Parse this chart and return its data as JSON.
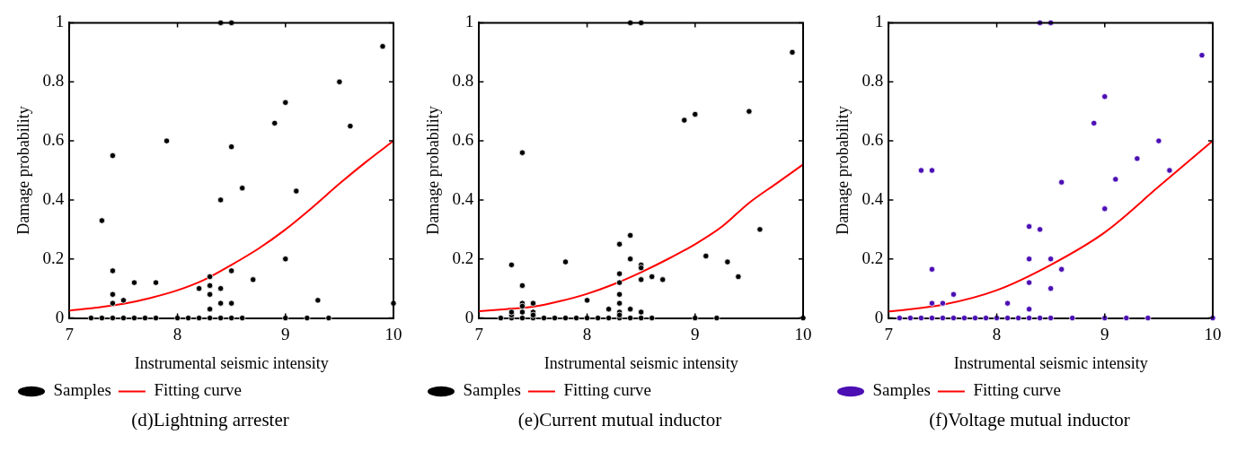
{
  "chart_data": [
    {
      "type": "scatter",
      "title": "(d)Lightning arrester",
      "xlabel": "Instrumental seismic intensity",
      "ylabel": "Damage probability",
      "xlim": [
        7,
        10
      ],
      "xticks": [
        7,
        8,
        9,
        10
      ],
      "ylim": [
        0,
        1
      ],
      "yticks": [
        0,
        0.2,
        0.4,
        0.6,
        0.8,
        1
      ],
      "grid": false,
      "legend": "bottom left",
      "series": [
        {
          "name": "Samples",
          "type": "scatter",
          "marker": "circle",
          "color": "#000000",
          "x": [
            7.2,
            7.3,
            7.4,
            7.5,
            7.6,
            7.7,
            7.8,
            8.0,
            8.1,
            8.2,
            8.3,
            8.4,
            8.5,
            8.6,
            9.0,
            9.2,
            9.4,
            7.3,
            7.4,
            7.4,
            7.4,
            7.4,
            7.5,
            7.6,
            7.8,
            7.9,
            8.2,
            8.3,
            8.3,
            8.3,
            8.3,
            8.4,
            8.4,
            8.4,
            8.4,
            8.5,
            8.5,
            8.5,
            8.5,
            8.6,
            8.7,
            8.9,
            9.0,
            9.0,
            9.1,
            9.3,
            9.5,
            9.6,
            9.9,
            10.0
          ],
          "values": [
            0,
            0,
            0,
            0,
            0,
            0,
            0,
            0,
            0,
            0,
            0,
            0,
            0,
            0,
            0,
            0,
            0,
            0.33,
            0.55,
            0.16,
            0.08,
            0.05,
            0.06,
            0.12,
            0.12,
            0.6,
            0.1,
            0.14,
            0.11,
            0.08,
            0.03,
            1.0,
            0.4,
            0.1,
            0.05,
            1.0,
            0.58,
            0.16,
            0.05,
            0.44,
            0.13,
            0.66,
            0.73,
            0.2,
            0.43,
            0.06,
            0.8,
            0.65,
            0.92,
            0.05
          ]
        },
        {
          "name": "Fitting curve",
          "type": "line",
          "color": "#ff0000",
          "line_style": "solid",
          "x": [
            7,
            7.25,
            7.5,
            7.75,
            8,
            8.25,
            8.5,
            8.75,
            9,
            9.25,
            9.5,
            9.75,
            10
          ],
          "values": [
            0.025,
            0.035,
            0.048,
            0.068,
            0.094,
            0.13,
            0.18,
            0.235,
            0.3,
            0.375,
            0.455,
            0.53,
            0.6
          ]
        }
      ]
    },
    {
      "type": "scatter",
      "title": "(e)Current mutual inductor",
      "xlabel": "Instrumental seismic intensity",
      "ylabel": "Damage probability",
      "xlim": [
        7,
        10
      ],
      "xticks": [
        7,
        8,
        9,
        10
      ],
      "ylim": [
        0,
        1
      ],
      "yticks": [
        0,
        0.2,
        0.4,
        0.6,
        0.8,
        1
      ],
      "grid": false,
      "legend": "bottom left",
      "series": [
        {
          "name": "Samples",
          "type": "scatter",
          "marker": "circle",
          "color": "#000000",
          "x": [
            7.2,
            7.3,
            7.4,
            7.5,
            7.6,
            7.7,
            7.8,
            7.9,
            8.0,
            8.1,
            8.2,
            8.3,
            8.4,
            8.5,
            8.6,
            9.0,
            9.2,
            10.0,
            7.3,
            7.3,
            7.3,
            7.4,
            7.4,
            7.4,
            7.4,
            7.4,
            7.5,
            7.5,
            7.5,
            7.8,
            8.0,
            8.2,
            8.3,
            8.3,
            8.3,
            8.3,
            8.3,
            8.3,
            8.3,
            8.4,
            8.4,
            8.4,
            8.4,
            8.5,
            8.5,
            8.5,
            8.5,
            8.5,
            8.6,
            8.7,
            8.9,
            9.0,
            9.1,
            9.3,
            9.4,
            9.5,
            9.6,
            9.9
          ],
          "values": [
            0,
            0,
            0,
            0,
            0,
            0,
            0,
            0,
            0,
            0,
            0,
            0,
            0,
            0,
            0,
            0,
            0,
            0,
            0.01,
            0.02,
            0.18,
            0.56,
            0.11,
            0.05,
            0.04,
            0.02,
            0.05,
            0.02,
            0.01,
            0.19,
            0.06,
            0.03,
            0.25,
            0.15,
            0.12,
            0.08,
            0.05,
            0.02,
            0.01,
            1.0,
            0.28,
            0.2,
            0.03,
            1.0,
            0.18,
            0.17,
            0.13,
            0.02,
            0.14,
            0.13,
            0.67,
            0.69,
            0.21,
            0.19,
            0.14,
            0.7,
            0.3,
            0.9
          ]
        },
        {
          "name": "Fitting curve",
          "type": "line",
          "color": "#ff0000",
          "line_style": "solid",
          "x": [
            7,
            7.25,
            7.5,
            7.75,
            8,
            8.25,
            8.5,
            8.75,
            9,
            9.25,
            9.5,
            9.75,
            10
          ],
          "values": [
            0.023,
            0.03,
            0.038,
            0.057,
            0.082,
            0.115,
            0.155,
            0.2,
            0.25,
            0.31,
            0.39,
            0.455,
            0.52
          ]
        }
      ]
    },
    {
      "type": "scatter",
      "title": "(f)Voltage mutual inductor",
      "xlabel": "Instrumental seismic intensity",
      "ylabel": "Damage probability",
      "xlim": [
        7,
        10
      ],
      "xticks": [
        7,
        8,
        9,
        10
      ],
      "ylim": [
        0,
        1
      ],
      "yticks": [
        0,
        0.2,
        0.4,
        0.6,
        0.8,
        1
      ],
      "grid": false,
      "legend": "bottom left",
      "series": [
        {
          "name": "Samples",
          "type": "scatter",
          "marker": "circle",
          "color": "#4b0fb4",
          "x": [
            7.1,
            7.2,
            7.3,
            7.4,
            7.5,
            7.6,
            7.7,
            7.8,
            7.9,
            8.0,
            8.1,
            8.2,
            8.3,
            8.4,
            8.5,
            8.7,
            9.0,
            9.2,
            9.4,
            10.0,
            7.3,
            7.4,
            7.4,
            7.4,
            7.5,
            7.6,
            8.1,
            8.3,
            8.3,
            8.3,
            8.3,
            8.4,
            8.4,
            8.5,
            8.5,
            8.5,
            8.6,
            8.6,
            8.9,
            9.0,
            9.0,
            9.1,
            9.3,
            9.5,
            9.6,
            9.9
          ],
          "values": [
            0,
            0,
            0,
            0,
            0,
            0,
            0,
            0,
            0,
            0,
            0,
            0,
            0,
            0,
            0,
            0,
            0,
            0,
            0,
            0,
            0.5,
            0.5,
            0.165,
            0.05,
            0.05,
            0.08,
            0.05,
            0.31,
            0.2,
            0.12,
            0.03,
            1.0,
            0.3,
            1.0,
            0.2,
            0.1,
            0.46,
            0.165,
            0.66,
            0.75,
            0.37,
            0.47,
            0.54,
            0.6,
            0.5,
            0.89
          ]
        },
        {
          "name": "Fitting curve",
          "type": "line",
          "color": "#ff0000",
          "line_style": "solid",
          "x": [
            7,
            7.5,
            8,
            8.5,
            9,
            9.5,
            10
          ],
          "values": [
            0.022,
            0.045,
            0.094,
            0.18,
            0.29,
            0.445,
            0.6
          ]
        }
      ]
    }
  ]
}
